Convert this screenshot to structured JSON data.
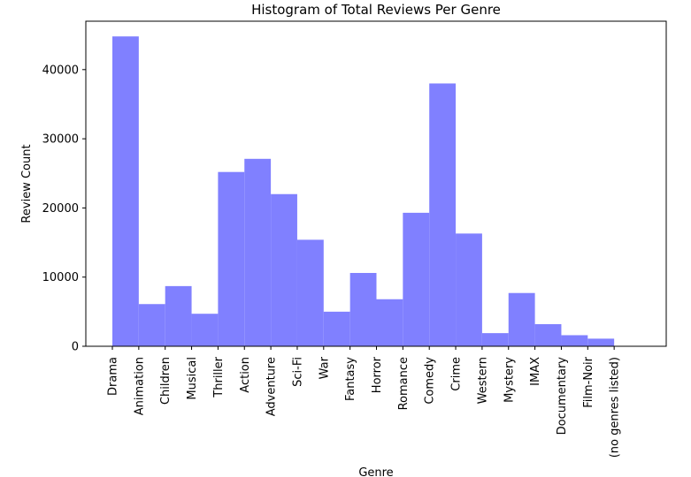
{
  "chart_data": {
    "type": "bar",
    "title": "Histogram of Total Reviews Per Genre",
    "xlabel": "Genre",
    "ylabel": "Review Count",
    "ylim": [
      0,
      47000
    ],
    "yticks": [
      0,
      10000,
      20000,
      30000,
      40000
    ],
    "grid": false,
    "bar_color": "#8080ff",
    "categories": [
      "Drama",
      "Animation",
      "Children",
      "Musical",
      "Thriller",
      "Action",
      "Adventure",
      "Sci-Fi",
      "War",
      "Fantasy",
      "Horror",
      "Romance",
      "Comedy",
      "Crime",
      "Western",
      "Mystery",
      "IMAX",
      "Documentary",
      "Film-Noir",
      "(no genres listed)"
    ],
    "values": [
      44800,
      6100,
      8700,
      4700,
      25200,
      27100,
      22000,
      15400,
      5000,
      10600,
      6800,
      19300,
      38000,
      16300,
      1900,
      7700,
      3200,
      1600,
      1100,
      0
    ]
  }
}
